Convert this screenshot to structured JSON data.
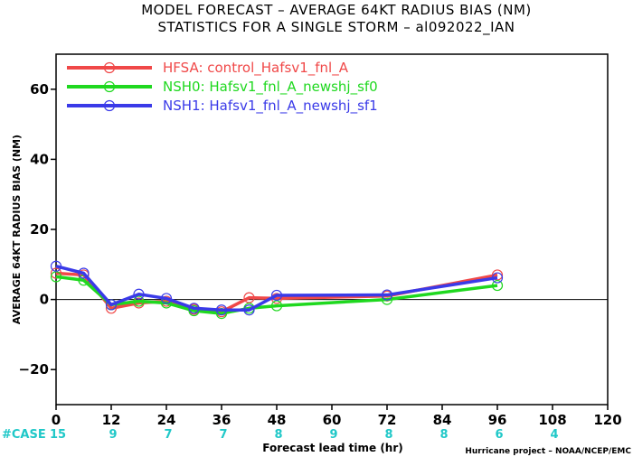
{
  "chart_data": {
    "type": "line",
    "title": "MODEL FORECAST – AVERAGE 64KT RADIUS BIAS (NM)",
    "subtitle": "STATISTICS FOR A SINGLE STORM – al092022_IAN",
    "xlabel": "Forecast lead time (hr)",
    "ylabel": "AVERAGE 64KT RADIUS BIAS (NM)",
    "credit": "Hurricane project – NOAA/NCEP/EMC",
    "xlim": [
      0,
      120
    ],
    "ylim": [
      -30,
      70
    ],
    "xticks": [
      "0",
      "12",
      "24",
      "36",
      "48",
      "60",
      "72",
      "84",
      "96",
      "108",
      "120"
    ],
    "yticks": [
      "60",
      "40",
      "20",
      "0",
      "−20"
    ],
    "ytick_values": [
      60,
      40,
      20,
      0,
      -20
    ],
    "zero_line": true,
    "grid": false,
    "legend_position": "top-left",
    "case_label": "#CASE",
    "cases": [
      {
        "x": 0,
        "n": "15"
      },
      {
        "x": 12,
        "n": "9"
      },
      {
        "x": 24,
        "n": "7"
      },
      {
        "x": 36,
        "n": "7"
      },
      {
        "x": 48,
        "n": "8"
      },
      {
        "x": 60,
        "n": "9"
      },
      {
        "x": 72,
        "n": "8"
      },
      {
        "x": 84,
        "n": "8"
      },
      {
        "x": 96,
        "n": "6"
      },
      {
        "x": 108,
        "n": "4"
      }
    ],
    "series": [
      {
        "name": "HFSA: control_Hafsv1_fnl_A",
        "color": "#f04848",
        "x": [
          0,
          6,
          12,
          18,
          24,
          30,
          36,
          42,
          48,
          72,
          96
        ],
        "y": [
          7.5,
          7.0,
          -2.5,
          -1.0,
          -0.5,
          -2.8,
          -3.5,
          0.5,
          0.3,
          1.0,
          7.0
        ]
      },
      {
        "name": "NSH0: Hafsv1_fnl_A_newshj_sf0",
        "color": "#1fd81f",
        "x": [
          0,
          6,
          12,
          18,
          24,
          30,
          36,
          42,
          48,
          72,
          96
        ],
        "y": [
          6.5,
          5.5,
          -1.5,
          -0.5,
          -1.0,
          -3.2,
          -4.0,
          -2.5,
          -1.8,
          0.0,
          4.0
        ]
      },
      {
        "name": "NSH1: Hafsv1_fnl_A_newshj_sf1",
        "color": "#3a3ae8",
        "x": [
          0,
          6,
          12,
          18,
          24,
          30,
          36,
          42,
          48,
          72,
          96
        ],
        "y": [
          9.5,
          7.5,
          -1.5,
          1.5,
          0.3,
          -2.5,
          -3.0,
          -3.0,
          1.2,
          1.3,
          6.2
        ]
      }
    ],
    "colors": {
      "case": "#20c8c8",
      "axis": "#000000"
    }
  }
}
